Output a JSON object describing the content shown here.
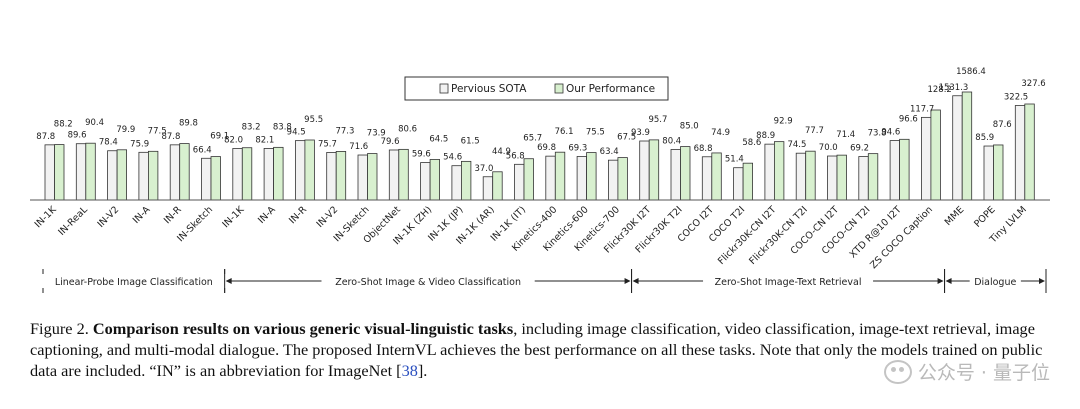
{
  "chart_data": {
    "type": "bar",
    "title": "",
    "legend": [
      "Pervious SOTA",
      "Our Performance"
    ],
    "colors": {
      "sota": "#f2f2f2",
      "ours": "#d8f0cf",
      "stroke": "#333333"
    },
    "categories": [
      "IN-1K",
      "IN-ReaL",
      "IN-V2",
      "IN-A",
      "IN-R",
      "IN-Sketch",
      "IN-1K",
      "IN-A",
      "IN-R",
      "IN-V2",
      "IN-Sketch",
      "ObjectNet",
      "IN-1K (ZH)",
      "IN-1K (JP)",
      "IN-1K (AR)",
      "IN-1K (IT)",
      "Kinetics-400",
      "Kinetics-600",
      "Kinetics-700",
      "Flickr30K I2T",
      "Flickr30K T2I",
      "COCO I2T",
      "COCO T2I",
      "Flickr30K-CN I2T",
      "Flickr30K-CN T2I",
      "COCO-CN I2T",
      "COCO-CN T2I",
      "XTD R@10 I2T",
      "ZS COCO Caption",
      "MME",
      "POPE",
      "Tiny LVLM"
    ],
    "series": [
      {
        "name": "Pervious SOTA",
        "values": [
          87.8,
          89.6,
          78.4,
          75.9,
          87.8,
          66.4,
          82.0,
          82.1,
          94.5,
          75.7,
          71.6,
          79.6,
          59.6,
          54.6,
          37.0,
          56.8,
          69.8,
          69.3,
          63.4,
          93.9,
          80.4,
          68.8,
          51.4,
          88.9,
          74.5,
          70.0,
          69.2,
          94.6,
          117.7,
          1531.3,
          85.9,
          322.5
        ]
      },
      {
        "name": "Our Performance",
        "values": [
          88.2,
          90.4,
          79.9,
          77.5,
          89.8,
          69.1,
          83.2,
          83.8,
          95.5,
          77.3,
          73.9,
          80.6,
          64.5,
          61.5,
          44.9,
          65.7,
          76.1,
          75.5,
          67.5,
          95.7,
          85.0,
          74.9,
          58.6,
          92.9,
          77.7,
          71.4,
          73.8,
          96.6,
          128.2,
          1586.4,
          87.6,
          327.6
        ]
      }
    ],
    "groups": [
      {
        "label": "Linear-Probe Image Classification",
        "start": 0,
        "end": 5
      },
      {
        "label": "Zero-Shot Image & Video Classification",
        "start": 6,
        "end": 18
      },
      {
        "label": "Zero-Shot Image-Text Retrieval",
        "start": 19,
        "end": 28
      },
      {
        "label": "Dialogue",
        "start": 29,
        "end": 31
      }
    ]
  },
  "caption": {
    "prefix": "Figure 2. ",
    "bold": "Comparison results on various generic visual-linguistic tasks",
    "text": ", including image classification, video classification, image-text retrieval, image captioning, and multi-modal dialogue. The proposed InternVL achieves the best performance on all these tasks. Note that only the models trained on public data are included. “IN” is an abbreviation for ImageNet [",
    "ref": "38",
    "end": "]."
  },
  "watermark": "公众号 · 量子位"
}
